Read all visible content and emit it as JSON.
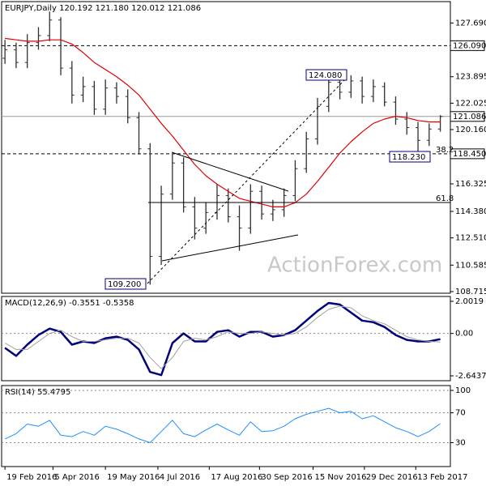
{
  "chart_data": [
    {
      "type": "ohlc",
      "title": "EURJPY,Daily  120.192 121.180 120.012 121.086",
      "xlim": [
        -0.3,
        39.9
      ],
      "ylim": [
        108.6,
        129.2
      ],
      "yticks": [
        {
          "value": 127.69,
          "label": "127.690"
        },
        123.895,
        122.025,
        {
          "value": 120.16,
          "label": "120.160"
        },
        116.325,
        {
          "value": 114.38,
          "label": "114.380"
        },
        {
          "value": 112.51,
          "label": "112.510"
        },
        110.585,
        108.715
      ],
      "open": [
        125.2,
        125.8,
        124.9,
        126.3,
        126.8,
        127.9,
        124.5,
        122.6,
        123.2,
        121.6,
        123.1,
        122.5,
        121.0,
        118.8,
        111.2,
        115.6,
        117.8,
        114.7,
        113.2,
        114.3,
        115.5,
        114.0,
        113.2,
        115.8,
        114.2,
        114.5,
        115.5,
        117.4,
        119.5,
        121.8,
        123.5,
        122.8,
        123.6,
        122.5,
        123.2,
        122.1,
        120.9,
        120.3,
        119.4,
        120.2
      ],
      "high": [
        126.5,
        126.3,
        126.9,
        127.4,
        128.5,
        128.1,
        125.0,
        123.9,
        123.6,
        123.7,
        123.5,
        123.0,
        121.4,
        119.2,
        116.2,
        118.45,
        118.2,
        115.4,
        115.0,
        116.3,
        116.0,
        114.8,
        116.3,
        116.2,
        115.2,
        116.0,
        118.0,
        120.0,
        122.4,
        124.0,
        124.08,
        124.0,
        123.9,
        123.7,
        123.5,
        122.5,
        121.4,
        120.7,
        120.6,
        121.18
      ],
      "low": [
        124.8,
        124.5,
        124.5,
        125.8,
        126.4,
        124.0,
        122.0,
        122.1,
        121.2,
        121.2,
        122.0,
        120.6,
        118.4,
        109.2,
        110.6,
        115.2,
        114.3,
        112.4,
        112.8,
        113.8,
        113.6,
        111.6,
        112.8,
        113.8,
        113.7,
        114.0,
        115.1,
        117.1,
        119.1,
        121.4,
        122.3,
        122.4,
        122.0,
        122.1,
        121.8,
        120.5,
        119.8,
        118.23,
        119.0,
        120.012
      ],
      "close": [
        125.8,
        124.9,
        126.3,
        126.8,
        127.9,
        124.5,
        122.6,
        123.2,
        121.6,
        123.1,
        122.5,
        121.0,
        118.8,
        111.2,
        115.6,
        117.8,
        114.7,
        113.2,
        114.3,
        115.5,
        114.0,
        113.2,
        115.8,
        114.2,
        114.5,
        115.5,
        117.4,
        119.5,
        121.8,
        123.5,
        122.8,
        123.6,
        122.5,
        123.2,
        122.1,
        120.9,
        120.3,
        119.4,
        120.2,
        121.086
      ],
      "bar_color": "#303030",
      "series": [
        {
          "color": "#e00000",
          "values": [
            126.6,
            126.5,
            126.4,
            126.4,
            126.5,
            126.5,
            126.2,
            125.6,
            124.9,
            124.4,
            123.9,
            123.3,
            122.6,
            121.6,
            120.6,
            119.7,
            118.7,
            117.7,
            116.9,
            116.3,
            115.8,
            115.3,
            115.1,
            114.9,
            114.7,
            114.7,
            115.0,
            115.6,
            116.5,
            117.5,
            118.5,
            119.3,
            120.0,
            120.6,
            120.9,
            121.1,
            121.0,
            120.8,
            120.7,
            120.7
          ]
        }
      ],
      "levels": [
        {
          "value": 126.09,
          "label": "126.090",
          "style": "dashed"
        },
        {
          "value": 121.086,
          "style": "solid"
        },
        {
          "value": 118.45,
          "label": "118.450",
          "style": "dashed"
        }
      ],
      "annotations": [
        "124.080",
        "109.200",
        "118.230",
        "38.2",
        "61.8",
        "ActionForex.com"
      ]
    },
    {
      "type": "line",
      "title": "MACD(12,26,9) -0.3551 -0.5358",
      "xlim": [
        -0.3,
        39.9
      ],
      "ylim": [
        -2.947,
        2.305
      ],
      "yticks": [
        2.0019,
        {
          "value": 0,
          "label": "0.00"
        },
        -2.6437
      ],
      "zero_line": true,
      "series": [
        {
          "color": "#00007a",
          "width": 2.5,
          "values": [
            -0.9,
            -1.4,
            -0.7,
            -0.1,
            0.3,
            0.1,
            -0.7,
            -0.5,
            -0.6,
            -0.3,
            -0.2,
            -0.4,
            -1.0,
            -2.4,
            -2.6,
            -0.6,
            0.0,
            -0.5,
            -0.5,
            0.1,
            0.2,
            -0.2,
            0.1,
            0.1,
            -0.2,
            -0.1,
            0.2,
            0.8,
            1.4,
            1.9,
            1.8,
            1.3,
            0.8,
            0.7,
            0.4,
            -0.1,
            -0.4,
            -0.5,
            -0.5,
            -0.3551
          ]
        },
        {
          "color": "#a0a0a0",
          "width": 1,
          "values": [
            -0.6,
            -1.0,
            -1.0,
            -0.5,
            0.0,
            0.2,
            -0.2,
            -0.5,
            -0.5,
            -0.4,
            -0.3,
            -0.3,
            -0.6,
            -1.5,
            -2.2,
            -1.5,
            -0.5,
            -0.3,
            -0.4,
            -0.2,
            0.1,
            0.0,
            0.0,
            0.1,
            0.0,
            -0.1,
            0.0,
            0.4,
            1.0,
            1.5,
            1.7,
            1.6,
            1.1,
            0.8,
            0.6,
            0.2,
            -0.2,
            -0.4,
            -0.5,
            -0.5358
          ]
        }
      ]
    },
    {
      "type": "line",
      "title": "RSI(14) 55.4795",
      "xlim": [
        -0.3,
        39.9
      ],
      "ylim": [
        -2,
        106.5
      ],
      "yticks": [
        100,
        70,
        30
      ],
      "grid": true,
      "xticks": [
        {
          "value": 0,
          "label": "19 Feb 2016"
        },
        {
          "value": 4.3,
          "label": "5 Apr 2016"
        },
        {
          "value": 9,
          "label": "19 May 2016"
        },
        {
          "value": 13.7,
          "label": "4 Jul 2016"
        },
        {
          "value": 18.3,
          "label": "17 Aug 2016"
        },
        {
          "value": 22.8,
          "label": "30 Sep 2016"
        },
        {
          "value": 27.6,
          "label": "15 Nov 2016"
        },
        {
          "value": 32.2,
          "label": "29 Dec 2016"
        },
        {
          "value": 36.8,
          "label": "13 Feb 2017"
        }
      ],
      "series": [
        {
          "color": "#1e90ff",
          "width": 1,
          "values": [
            35,
            42,
            55,
            52,
            60,
            40,
            38,
            45,
            40,
            52,
            48,
            42,
            35,
            30,
            45,
            60,
            42,
            38,
            47,
            55,
            47,
            40,
            58,
            45,
            46,
            52,
            62,
            68,
            72,
            76,
            70,
            72,
            62,
            66,
            58,
            50,
            45,
            38,
            45,
            55.4795
          ]
        }
      ]
    }
  ]
}
